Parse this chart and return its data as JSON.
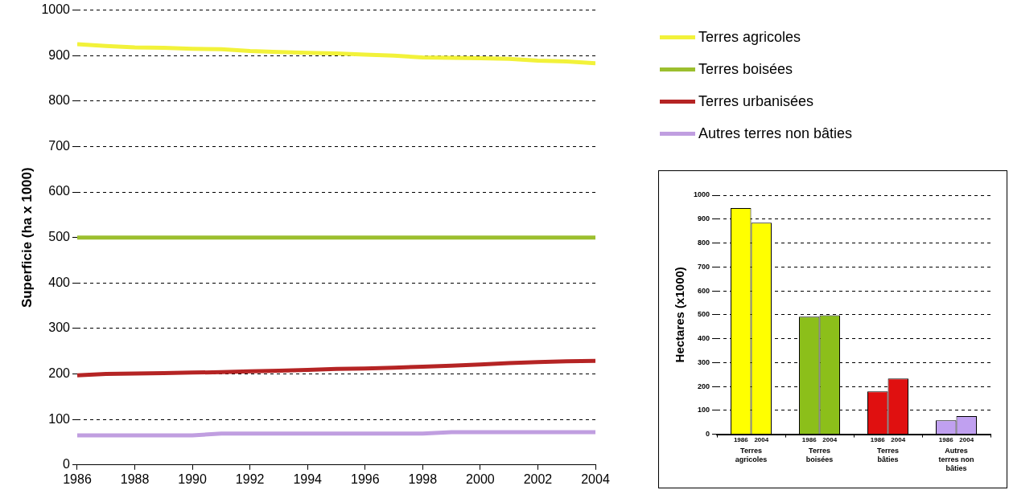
{
  "chart_data": [
    {
      "type": "line",
      "ylabel": "Superficie (ha x 1000)",
      "x": [
        1986,
        1987,
        1988,
        1989,
        1990,
        1991,
        1992,
        1993,
        1994,
        1995,
        1996,
        1997,
        1998,
        1999,
        2000,
        2001,
        2002,
        2003,
        2004
      ],
      "series": [
        {
          "name": "Terres agricoles",
          "color": "#f2f23a",
          "values": [
            925,
            921,
            918,
            917,
            915,
            914,
            910,
            908,
            906,
            905,
            902,
            900,
            896,
            895,
            894,
            893,
            889,
            887,
            883
          ]
        },
        {
          "name": "Terres boisées",
          "color": "#9cbf2e",
          "values": [
            500,
            500,
            500,
            500,
            500,
            500,
            500,
            500,
            500,
            500,
            500,
            500,
            500,
            500,
            500,
            500,
            500,
            500,
            500
          ]
        },
        {
          "name": "Terres urbanisées",
          "color": "#b52424",
          "values": [
            197,
            200,
            201,
            202,
            203,
            204,
            206,
            207,
            209,
            211,
            212,
            214,
            216,
            218,
            221,
            224,
            226,
            228,
            229
          ]
        },
        {
          "name": "Autres terres non bâties",
          "color": "#c09ee0",
          "values": [
            65,
            65,
            65,
            65,
            65,
            69,
            69,
            69,
            69,
            69,
            69,
            69,
            69,
            72,
            72,
            72,
            72,
            72,
            72
          ]
        }
      ],
      "xlim": [
        1986,
        2004
      ],
      "xticks": [
        1986,
        1988,
        1990,
        1992,
        1994,
        1996,
        1998,
        2000,
        2002,
        2004
      ],
      "ylim": [
        0,
        1000
      ],
      "yticks": [
        0,
        100,
        200,
        300,
        400,
        500,
        600,
        700,
        800,
        900,
        1000
      ],
      "grid": "y",
      "legend": "top right",
      "marker": "none",
      "line_style": "solid"
    },
    {
      "type": "bar",
      "ylabel": "Hectares (x1000)",
      "categories": [
        "Terres agricoles",
        "Terres boisées",
        "Terres bâties",
        "Autres terres non bâties"
      ],
      "series": [
        {
          "name": "1986",
          "colors": [
            "#ffff00",
            "#8cbf1a",
            "#e01010",
            "#c0a0f0"
          ],
          "values": [
            946,
            492,
            179,
            58
          ]
        },
        {
          "name": "2004",
          "colors": [
            "#ffff00",
            "#8cbf1a",
            "#e01010",
            "#c0a0f0"
          ],
          "values": [
            885,
            498,
            233,
            76
          ]
        }
      ],
      "ylim": [
        0,
        1000
      ],
      "yticks": [
        0,
        100,
        200,
        300,
        400,
        500,
        600,
        700,
        800,
        900,
        1000
      ],
      "grid": "y",
      "legend": false
    }
  ]
}
